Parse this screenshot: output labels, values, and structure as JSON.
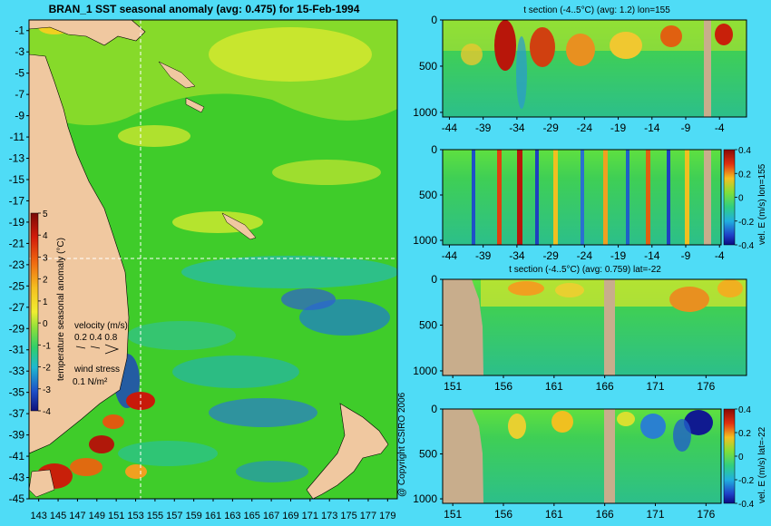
{
  "title": "BRAN_1 SST seasonal anomaly (avg: 0.475) for 15-Feb-1994",
  "copyright": "@ Copyright CSIRO 2006",
  "colors": {
    "background": "#4fdcf6",
    "land": "#f0c8a0",
    "section_land": "#c8ad8c",
    "ocean_base": "#3fcc2a",
    "warm_anomaly": "#c01a0a",
    "cold_anomaly": "#1a4ec8",
    "crosshair": "#ffffff"
  },
  "chart_data": [
    {
      "type": "heatmap",
      "id": "map",
      "title": "BRAN_1 SST seasonal anomaly (avg: 0.475) for 15-Feb-1994",
      "x_ticks": [
        "143",
        "145",
        "147",
        "149",
        "151",
        "153",
        "155",
        "157",
        "159",
        "161",
        "163",
        "165",
        "167",
        "169",
        "171",
        "173",
        "175",
        "177",
        "179"
      ],
      "y_ticks": [
        "-1",
        "-3",
        "-5",
        "-7",
        "-9",
        "-11",
        "-13",
        "-15",
        "-17",
        "-19",
        "-21",
        "-23",
        "-25",
        "-27",
        "-29",
        "-31",
        "-33",
        "-35",
        "-37",
        "-39",
        "-41",
        "-43",
        "-45"
      ],
      "xlim": [
        142,
        180
      ],
      "ylim": [
        -45,
        0
      ],
      "crosshair": {
        "lon": 155,
        "lat": -22
      },
      "colorbar": {
        "label": "temperature seasonal anomaly (°C)",
        "ticks": [
          "5",
          "4",
          "3",
          "2",
          "1",
          "0",
          "-1",
          "-2",
          "-3",
          "-4"
        ],
        "range": [
          -4,
          5
        ]
      },
      "velocity_legend": {
        "label": "velocity (m/s)",
        "values": "0.2 0.4 0.8"
      },
      "wind_legend": {
        "label": "wind stress",
        "value": "0.1 N/m²"
      }
    },
    {
      "type": "heatmap",
      "id": "section1",
      "title": "t section (-4..5°C) (avg: 1.2) lon=155",
      "x_ticks": [
        "-44",
        "-39",
        "-34",
        "-29",
        "-24",
        "-19",
        "-14",
        "-9",
        "-4"
      ],
      "xlim": [
        -45,
        0
      ],
      "y_ticks": [
        "0",
        "500",
        "1000"
      ],
      "ylim": [
        0,
        1050
      ]
    },
    {
      "type": "heatmap",
      "id": "section2",
      "x_ticks": [
        "-44",
        "-39",
        "-34",
        "-29",
        "-24",
        "-19",
        "-14",
        "-9",
        "-4"
      ],
      "xlim": [
        -45,
        0
      ],
      "y_ticks": [
        "0",
        "500",
        "1000"
      ],
      "ylim": [
        0,
        1050
      ],
      "colorbar": {
        "label": "vel. E (m/s) lon=155",
        "ticks": [
          "0.4",
          "0.2",
          "0",
          "-0.2",
          "-0.4"
        ],
        "range": [
          -0.4,
          0.4
        ]
      }
    },
    {
      "type": "heatmap",
      "id": "section3",
      "title": "t section (-4..5°C) (avg: 0.759) lat=-22",
      "x_ticks": [
        "151",
        "156",
        "161",
        "166",
        "171",
        "176"
      ],
      "xlim": [
        150,
        180
      ],
      "y_ticks": [
        "0",
        "500",
        "1000"
      ],
      "ylim": [
        0,
        1050
      ]
    },
    {
      "type": "heatmap",
      "id": "section4",
      "x_ticks": [
        "151",
        "156",
        "161",
        "166",
        "171",
        "176"
      ],
      "xlim": [
        150,
        180
      ],
      "y_ticks": [
        "0",
        "500",
        "1000"
      ],
      "ylim": [
        0,
        1050
      ],
      "colorbar": {
        "label": "vel. E (m/s) lat=-22",
        "ticks": [
          "0.4",
          "0.2",
          "0",
          "-0.2",
          "-0.4"
        ],
        "range": [
          -0.4,
          0.4
        ]
      }
    }
  ]
}
